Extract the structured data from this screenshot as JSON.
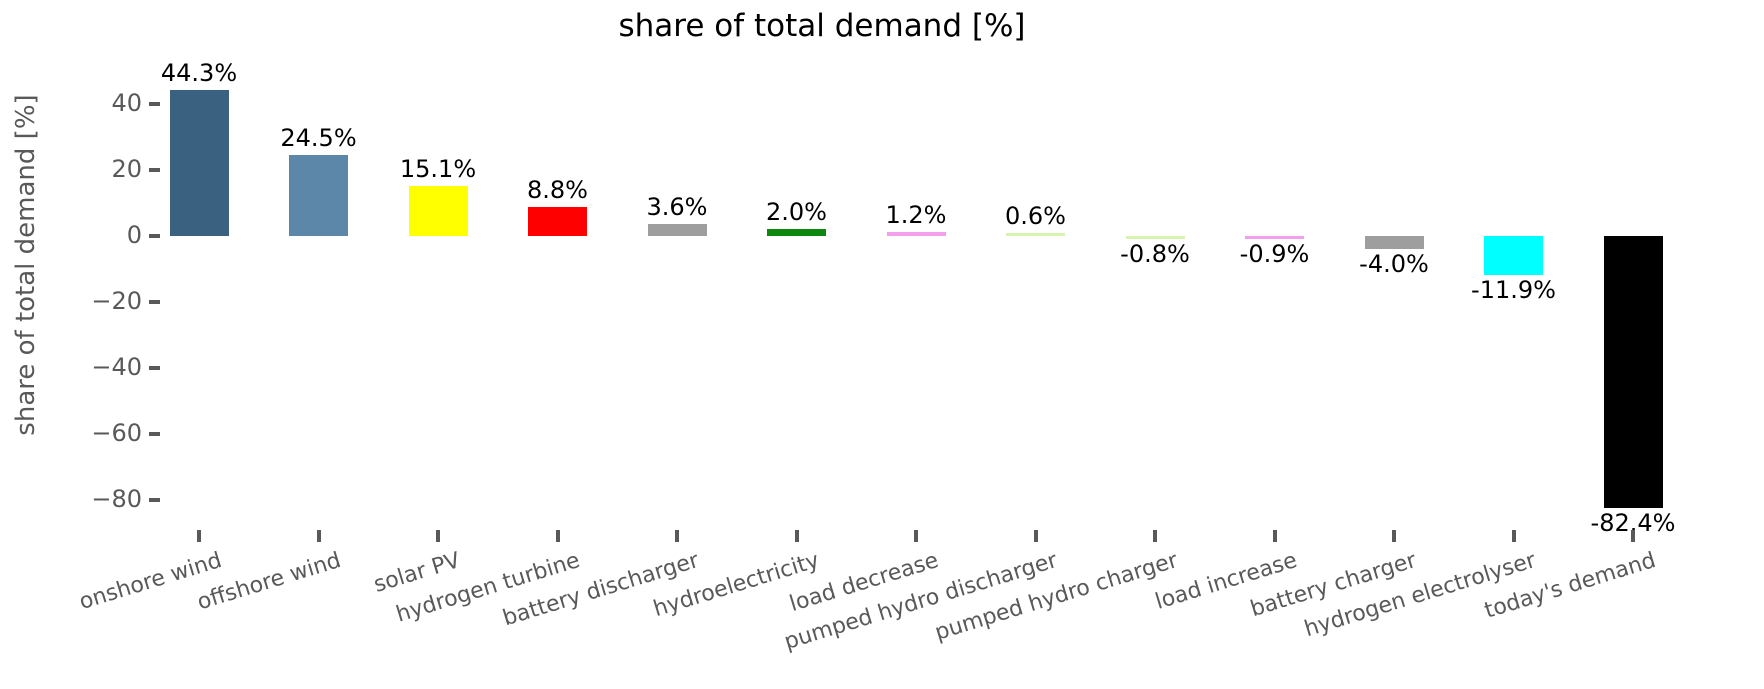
{
  "chart_data": {
    "type": "bar",
    "title": "share of total demand [%]",
    "xlabel": "",
    "ylabel": "share of total demand [%]",
    "categories": [
      "onshore wind",
      "offshore wind",
      "solar PV",
      "hydrogen turbine",
      "battery discharger",
      "hydroelectricity",
      "load decrease",
      "pumped hydro discharger",
      "pumped hydro charger",
      "load increase",
      "battery charger",
      "hydrogen electrolyser",
      "today's demand"
    ],
    "values": [
      44.3,
      24.5,
      15.1,
      8.8,
      3.6,
      2.0,
      1.2,
      0.6,
      -0.8,
      -0.9,
      -4.0,
      -11.9,
      -82.4
    ],
    "value_labels": [
      "44.3%",
      "24.5%",
      "15.1%",
      "8.8%",
      "3.6%",
      "2.0%",
      "1.2%",
      "0.6%",
      "-0.8%",
      "-0.9%",
      "-4.0%",
      "-11.9%",
      "-82.4%"
    ],
    "bar_colors": [
      "#3a617f",
      "#5d87a8",
      "#ffff00",
      "#ff0000",
      "#9e9e9e",
      "#0d870d",
      "#f2a0ee",
      "#d6f4b0",
      "#d6f4b0",
      "#f2a0ee",
      "#9e9e9e",
      "#00ffff",
      "#000000"
    ],
    "yticks": [
      40,
      20,
      0,
      -20,
      -40,
      -60,
      -80
    ],
    "ytick_labels": [
      "40",
      "20",
      "0",
      "−20",
      "−40",
      "−60",
      "−80"
    ],
    "ylim": [
      -91,
      49
    ],
    "grid": false,
    "legend": false,
    "background_color": "#ffffff",
    "axis_text_color": "#595959",
    "value_label_color": "#000000",
    "title_color": "#000000"
  }
}
